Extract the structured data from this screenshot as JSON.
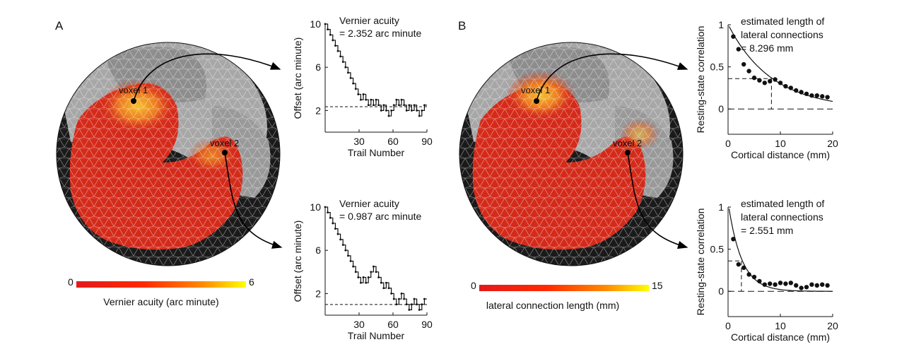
{
  "panels": {
    "a": "A",
    "b": "B"
  },
  "brains": [
    {
      "id": "A",
      "colorbar": {
        "min": "0",
        "max": "6",
        "label": "Vernier acuity (arc minute)",
        "colors": [
          "#e31a1c",
          "#ff2a00",
          "#ff8c00",
          "#ffff00"
        ]
      },
      "voxels": [
        "voxel 1",
        "voxel 2"
      ]
    },
    {
      "id": "B",
      "colorbar": {
        "min": "0",
        "max": "15",
        "label": "lateral connection length (mm)",
        "colors": [
          "#e31a1c",
          "#ff2a00",
          "#ff8c00",
          "#ffff00"
        ]
      },
      "voxels": [
        "voxel 1",
        "voxel 2"
      ]
    }
  ],
  "colors": {
    "brain_bg": "#1a1a1a",
    "gyri": "#a7a7a7",
    "sulci": "#7a7a7a",
    "heat_red": "#d42a1a",
    "heat_yellow": "#f0b020",
    "axis": "#111111"
  },
  "chart_data": [
    {
      "type": "line",
      "title": "",
      "annotation": [
        "Vernier acuity",
        "= 2.352 arc minute"
      ],
      "xlabel": "Trail Number",
      "ylabel": "Offset (arc minute)",
      "xlim": [
        0,
        90
      ],
      "ylim": [
        0,
        10
      ],
      "xticks": [
        30,
        60,
        90
      ],
      "yticks": [
        2,
        6,
        10
      ],
      "threshold": 2.352,
      "series": [
        {
          "name": "staircase",
          "values": [
            10,
            9.5,
            9,
            8.5,
            8,
            7.5,
            7,
            6.5,
            6,
            5.5,
            5,
            4.5,
            4,
            3.5,
            3,
            3.5,
            3,
            2.5,
            3,
            2.5,
            3,
            2.5,
            2,
            2.5,
            2,
            1.5,
            2,
            2.5,
            3,
            2.5,
            3,
            2.5,
            2,
            2.5,
            2,
            2.5,
            2,
            1.5,
            2,
            2.5
          ]
        }
      ]
    },
    {
      "type": "line",
      "title": "",
      "annotation": [
        "Vernier acuity",
        "= 0.987 arc minute"
      ],
      "xlabel": "Trail Number",
      "ylabel": "Offset (arc minute)",
      "xlim": [
        0,
        90
      ],
      "ylim": [
        0,
        10
      ],
      "xticks": [
        30,
        60,
        90
      ],
      "yticks": [
        2,
        6,
        10
      ],
      "threshold": 0.987,
      "series": [
        {
          "name": "staircase",
          "values": [
            10,
            9.5,
            9,
            8.5,
            8,
            7.5,
            7,
            6.5,
            6,
            5.5,
            5,
            4.5,
            4,
            3.5,
            3,
            3.5,
            3,
            3.5,
            4,
            4.5,
            4,
            3.5,
            3,
            2.5,
            3,
            2.5,
            2,
            1.5,
            1,
            1.5,
            2,
            1.5,
            1,
            0.5,
            1,
            1.5,
            1,
            0.5,
            1,
            1.5
          ]
        }
      ]
    },
    {
      "type": "scatter",
      "title": "",
      "annotation": [
        "estimated length of",
        "lateral connections",
        "= 8.296 mm"
      ],
      "xlabel": "Cortical distance (mm)",
      "ylabel": "Resting-state correlation",
      "xlim": [
        0,
        20
      ],
      "ylim": [
        -0.3,
        1
      ],
      "xticks": [
        0,
        10,
        20
      ],
      "yticks": [
        0,
        0.5,
        1
      ],
      "length_constant": 8.296,
      "x": [
        1,
        2,
        3,
        4,
        5,
        6,
        7,
        8,
        9,
        10,
        11,
        12,
        13,
        14,
        15,
        16,
        17,
        18,
        19
      ],
      "y": [
        0.86,
        0.71,
        0.53,
        0.45,
        0.37,
        0.34,
        0.31,
        0.33,
        0.35,
        0.31,
        0.27,
        0.25,
        0.22,
        0.2,
        0.18,
        0.16,
        0.16,
        0.15,
        0.14
      ]
    },
    {
      "type": "scatter",
      "title": "",
      "annotation": [
        "estimated length of",
        "lateral connections",
        "= 2.551 mm"
      ],
      "xlabel": "Cortical distance (mm)",
      "ylabel": "Resting-state correlation",
      "xlim": [
        0,
        20
      ],
      "ylim": [
        -0.3,
        1
      ],
      "xticks": [
        0,
        10,
        20
      ],
      "yticks": [
        0,
        0.5,
        1
      ],
      "length_constant": 2.551,
      "x": [
        1,
        2,
        3,
        4,
        5,
        6,
        7,
        8,
        9,
        10,
        11,
        12,
        13,
        14,
        15,
        16,
        17,
        18,
        19
      ],
      "y": [
        0.62,
        0.32,
        0.28,
        0.2,
        0.17,
        0.12,
        0.08,
        0.09,
        0.08,
        0.1,
        0.09,
        0.1,
        0.07,
        0.04,
        0.05,
        0.08,
        0.07,
        0.08,
        0.07
      ]
    }
  ]
}
